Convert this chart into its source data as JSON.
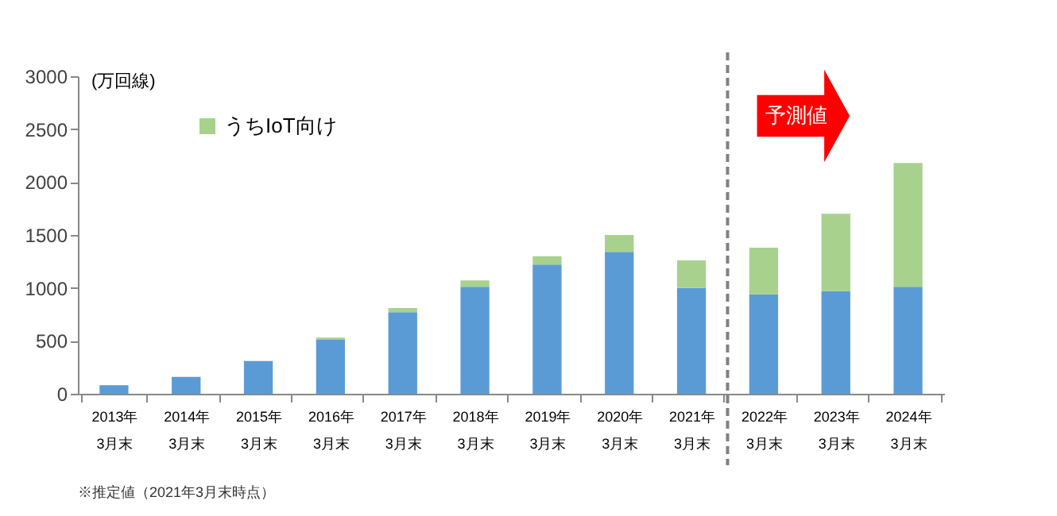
{
  "chart_data": {
    "type": "bar",
    "stacked": true,
    "ylabel": "(万回線)",
    "categories": [
      "2013年\n3月末",
      "2014年\n3月末",
      "2015年\n3月末",
      "2016年\n3月末",
      "2017年\n3月末",
      "2018年\n3月末",
      "2019年\n3月末",
      "2020年\n3月末",
      "2021年\n3月末",
      "2022年\n3月末",
      "2023年\n3月末",
      "2024年\n3月末"
    ],
    "series": [
      {
        "color": "#5b9bd5",
        "values": [
          80,
          160,
          310,
          510,
          770,
          1010,
          1220,
          1340,
          1000,
          940,
          970,
          1010
        ]
      },
      {
        "name": "うちIoT向け",
        "color": "#a9d18e",
        "values": [
          null,
          null,
          null,
          20,
          40,
          60,
          80,
          160,
          260,
          440,
          730,
          1170
        ]
      }
    ],
    "ylim": [
      0,
      3000
    ],
    "yticks": [
      0,
      500,
      1000,
      1500,
      2000,
      2500,
      3000
    ],
    "grid": false,
    "legend": "top left",
    "annotations": [
      "予測値",
      "※推定値（2021年3月末時点）"
    ]
  }
}
